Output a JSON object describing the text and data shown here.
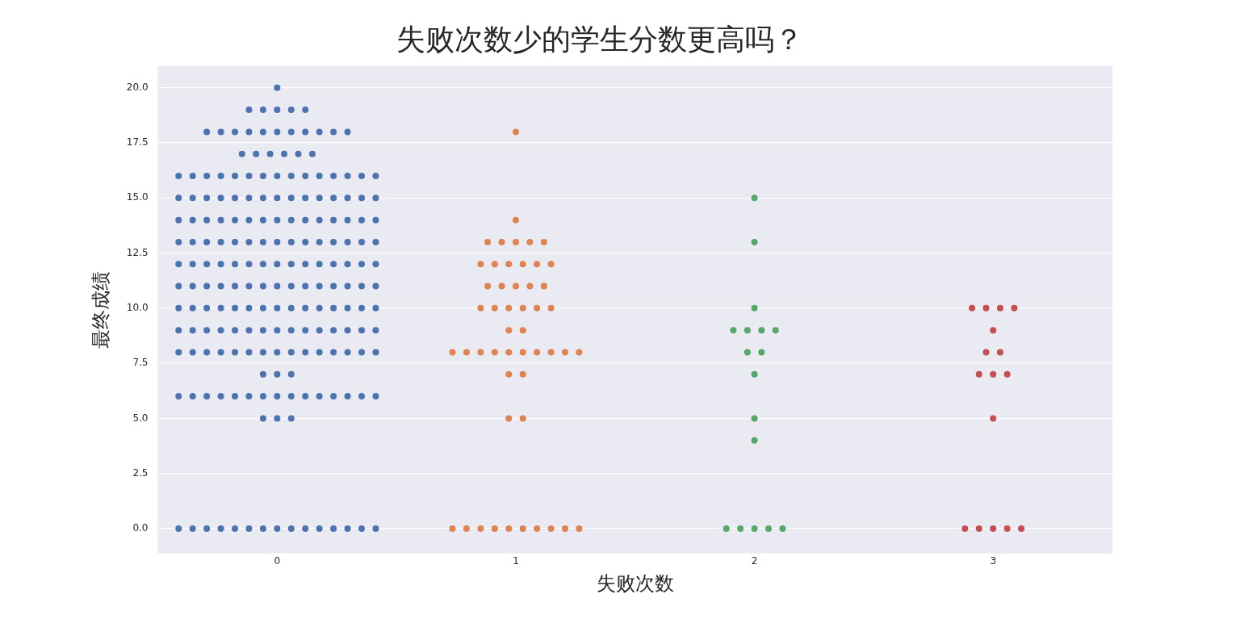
{
  "chart_data": {
    "type": "scatter",
    "title": "失败次数少的学生分数更高吗？",
    "xlabel": "失败次数",
    "ylabel": "最终成绩",
    "categories": [
      "0",
      "1",
      "2",
      "3"
    ],
    "ylim": [
      -1.13,
      21.01
    ],
    "yticks": [
      {
        "value": 0,
        "label": "0.0"
      },
      {
        "value": 2.5,
        "label": "2.5"
      },
      {
        "value": 5,
        "label": "5.0"
      },
      {
        "value": 7.5,
        "label": "7.5"
      },
      {
        "value": 10,
        "label": "10.0"
      },
      {
        "value": 12.5,
        "label": "12.5"
      },
      {
        "value": 15,
        "label": "15.0"
      },
      {
        "value": 17.5,
        "label": "17.5"
      },
      {
        "value": 20,
        "label": "20.0"
      }
    ],
    "grid": "y",
    "legend": false,
    "marker": "circle",
    "series": [
      {
        "color": "#4c72b0",
        "x": [
          "0",
          "0",
          "0",
          "0",
          "0",
          "0",
          "0",
          "0",
          "0",
          "0",
          "0",
          "0",
          "0",
          "0",
          "0",
          "0",
          "0",
          "0",
          "0",
          "0",
          "0",
          "0",
          "0",
          "0",
          "0",
          "0",
          "0",
          "0",
          "0",
          "0",
          "0",
          "0",
          "0",
          "0",
          "0",
          "0",
          "0",
          "0",
          "0",
          "0",
          "0",
          "0",
          "0",
          "0",
          "0",
          "0",
          "0",
          "0",
          "0",
          "0",
          "0",
          "0",
          "0",
          "0",
          "0",
          "0",
          "0",
          "0",
          "0",
          "0",
          "0",
          "0",
          "0",
          "0",
          "0",
          "0",
          "0",
          "0",
          "0",
          "0",
          "0",
          "0",
          "0",
          "0",
          "0",
          "0",
          "0",
          "0",
          "0",
          "0",
          "0",
          "0",
          "0",
          "0",
          "0",
          "0",
          "0",
          "0",
          "0",
          "0",
          "0",
          "0",
          "0",
          "0",
          "0",
          "0",
          "0",
          "0",
          "0",
          "0",
          "0",
          "0",
          "0",
          "0",
          "0",
          "0",
          "0",
          "0",
          "0",
          "0",
          "0",
          "0",
          "0",
          "0",
          "0",
          "0",
          "0",
          "0",
          "0",
          "0",
          "0",
          "0",
          "0",
          "0",
          "0",
          "0",
          "0",
          "0",
          "0",
          "0",
          "0",
          "0",
          "0",
          "0",
          "0",
          "0",
          "0",
          "0",
          "0",
          "0",
          "0",
          "0",
          "0",
          "0",
          "0",
          "0",
          "0",
          "0",
          "0",
          "0",
          "0",
          "0",
          "0",
          "0",
          "0",
          "0",
          "0",
          "0",
          "0",
          "0",
          "0",
          "0",
          "0",
          "0",
          "0",
          "0",
          "0",
          "0",
          "0",
          "0",
          "0",
          "0",
          "0",
          "0",
          "0",
          "0",
          "0",
          "0",
          "0",
          "0",
          "0",
          "0",
          "0",
          "0",
          "0",
          "0",
          "0",
          "0",
          "0",
          "0",
          "0",
          "0",
          "0",
          "0"
        ],
        "values": [
          20,
          19,
          19,
          19,
          19,
          19,
          18,
          18,
          18,
          18,
          18,
          18,
          18,
          18,
          18,
          18,
          18,
          17,
          17,
          17,
          17,
          17,
          17,
          16,
          16,
          16,
          16,
          16,
          16,
          16,
          16,
          16,
          16,
          16,
          16,
          16,
          16,
          16,
          15,
          15,
          15,
          15,
          15,
          15,
          15,
          15,
          15,
          15,
          15,
          15,
          15,
          15,
          15,
          14,
          14,
          14,
          14,
          14,
          14,
          14,
          14,
          14,
          14,
          14,
          14,
          14,
          14,
          14,
          13,
          13,
          13,
          13,
          13,
          13,
          13,
          13,
          13,
          13,
          13,
          13,
          13,
          13,
          13,
          12,
          12,
          12,
          12,
          12,
          12,
          12,
          12,
          12,
          12,
          12,
          12,
          12,
          12,
          12,
          11,
          11,
          11,
          11,
          11,
          11,
          11,
          11,
          11,
          11,
          11,
          11,
          11,
          11,
          11,
          10,
          10,
          10,
          10,
          10,
          10,
          10,
          10,
          10,
          10,
          10,
          10,
          10,
          10,
          10,
          9,
          9,
          9,
          9,
          9,
          9,
          9,
          9,
          9,
          9,
          9,
          9,
          9,
          9,
          9,
          8,
          8,
          8,
          8,
          8,
          8,
          8,
          8,
          8,
          8,
          8,
          8,
          8,
          8,
          8,
          7,
          7,
          7,
          6,
          6,
          6,
          6,
          6,
          6,
          6,
          6,
          6,
          6,
          6,
          6,
          6,
          6,
          6,
          5,
          5,
          5,
          0,
          0,
          0,
          0,
          0,
          0,
          0,
          0,
          0,
          0,
          0,
          0,
          0,
          0,
          0
        ]
      },
      {
        "color": "#dd8452",
        "x": [
          "1",
          "1",
          "1",
          "1",
          "1",
          "1",
          "1",
          "1",
          "1",
          "1",
          "1",
          "1",
          "1",
          "1",
          "1",
          "1",
          "1",
          "1",
          "1",
          "1",
          "1",
          "1",
          "1",
          "1",
          "1",
          "1",
          "1",
          "1",
          "1",
          "1",
          "1",
          "1",
          "1",
          "1",
          "1",
          "1",
          "1",
          "1",
          "1",
          "1",
          "1",
          "1",
          "1",
          "1",
          "1",
          "1",
          "1",
          "1",
          "1",
          "1"
        ],
        "values": [
          18,
          14,
          13,
          13,
          13,
          13,
          13,
          12,
          12,
          12,
          12,
          12,
          12,
          11,
          11,
          11,
          11,
          11,
          10,
          10,
          10,
          10,
          10,
          10,
          9,
          9,
          8,
          8,
          8,
          8,
          8,
          8,
          8,
          8,
          8,
          8,
          7,
          7,
          5,
          5,
          0,
          0,
          0,
          0,
          0,
          0,
          0,
          0,
          0,
          0
        ]
      },
      {
        "color": "#55a868",
        "x": [
          "2",
          "2",
          "2",
          "2",
          "2",
          "2",
          "2",
          "2",
          "2",
          "2",
          "2",
          "2",
          "2",
          "2",
          "2",
          "2",
          "2"
        ],
        "values": [
          15,
          13,
          10,
          9,
          9,
          9,
          9,
          8,
          8,
          7,
          5,
          4,
          0,
          0,
          0,
          0,
          0
        ]
      },
      {
        "color": "#c44e52",
        "x": [
          "3",
          "3",
          "3",
          "3",
          "3",
          "3",
          "3",
          "3",
          "3",
          "3",
          "3",
          "3",
          "3",
          "3",
          "3",
          "3"
        ],
        "values": [
          10,
          10,
          10,
          10,
          9,
          8,
          8,
          7,
          7,
          7,
          5,
          0,
          0,
          0,
          0,
          0
        ]
      }
    ]
  }
}
